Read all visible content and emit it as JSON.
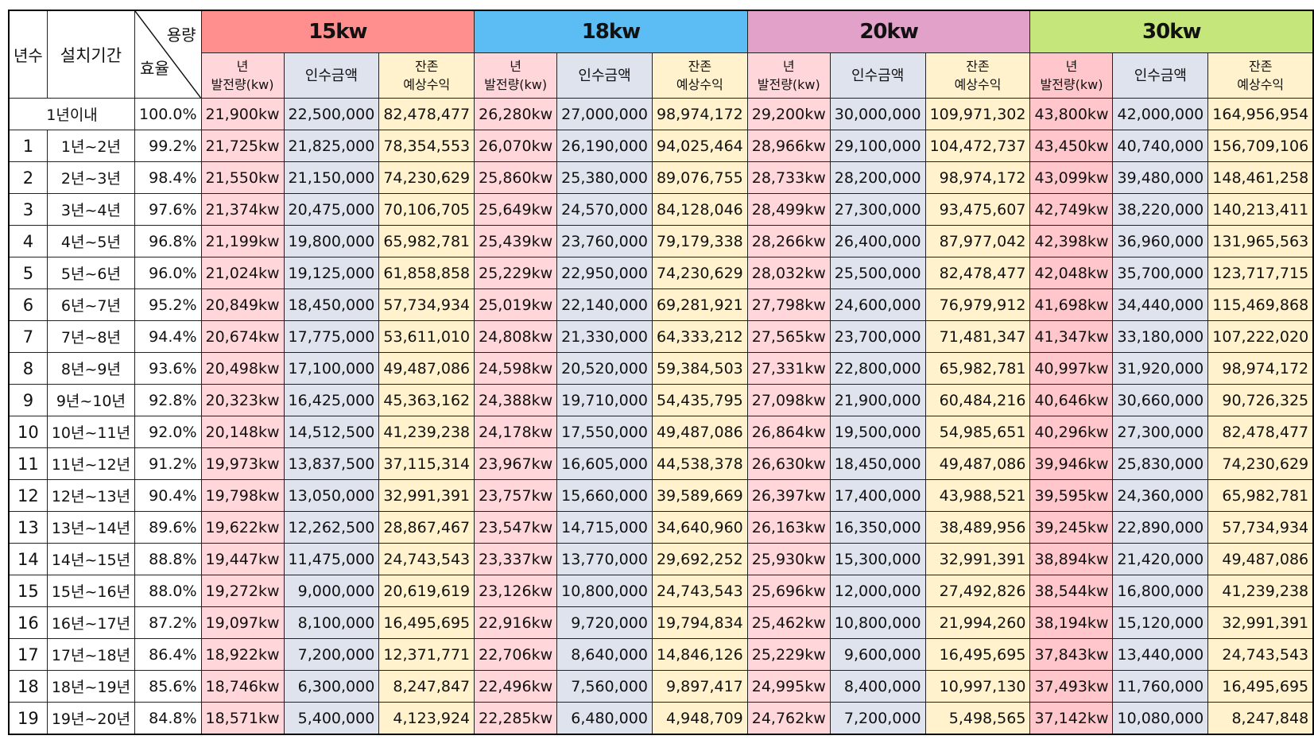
{
  "header": {
    "years": "년수",
    "period": "설치기간",
    "capacity": "용량",
    "efficiency": "효율",
    "groups": [
      {
        "label": "15kw",
        "color": "#FF8F8F"
      },
      {
        "label": "18kw",
        "color": "#5CBDF5"
      },
      {
        "label": "20kw",
        "color": "#E2A1C9"
      },
      {
        "label": "30kw",
        "color": "#C5E67B"
      }
    ],
    "sub": {
      "kw_l1": "년",
      "kw_l2": "발전량(kw)",
      "amount": "인수금액",
      "rev_l1": "잔존",
      "rev_l2": "예상수익"
    }
  },
  "first_row": {
    "period": "1년이내",
    "eff": "100.0%",
    "values": [
      "21,900kw",
      "22,500,000",
      "82,478,477",
      "26,280kw",
      "27,000,000",
      "98,974,172",
      "29,200kw",
      "30,000,000",
      "109,971,302",
      "43,800kw",
      "42,000,000",
      "164,956,954"
    ]
  },
  "rows": [
    {
      "n": "1",
      "period": "1년~2년",
      "eff": "99.2%",
      "values": [
        "21,725kw",
        "21,825,000",
        "78,354,553",
        "26,070kw",
        "26,190,000",
        "94,025,464",
        "28,966kw",
        "29,100,000",
        "104,472,737",
        "43,450kw",
        "40,740,000",
        "156,709,106"
      ]
    },
    {
      "n": "2",
      "period": "2년~3년",
      "eff": "98.4%",
      "values": [
        "21,550kw",
        "21,150,000",
        "74,230,629",
        "25,860kw",
        "25,380,000",
        "89,076,755",
        "28,733kw",
        "28,200,000",
        "98,974,172",
        "43,099kw",
        "39,480,000",
        "148,461,258"
      ]
    },
    {
      "n": "3",
      "period": "3년~4년",
      "eff": "97.6%",
      "values": [
        "21,374kw",
        "20,475,000",
        "70,106,705",
        "25,649kw",
        "24,570,000",
        "84,128,046",
        "28,499kw",
        "27,300,000",
        "93,475,607",
        "42,749kw",
        "38,220,000",
        "140,213,411"
      ]
    },
    {
      "n": "4",
      "period": "4년~5년",
      "eff": "96.8%",
      "values": [
        "21,199kw",
        "19,800,000",
        "65,982,781",
        "25,439kw",
        "23,760,000",
        "79,179,338",
        "28,266kw",
        "26,400,000",
        "87,977,042",
        "42,398kw",
        "36,960,000",
        "131,965,563"
      ]
    },
    {
      "n": "5",
      "period": "5년~6년",
      "eff": "96.0%",
      "values": [
        "21,024kw",
        "19,125,000",
        "61,858,858",
        "25,229kw",
        "22,950,000",
        "74,230,629",
        "28,032kw",
        "25,500,000",
        "82,478,477",
        "42,048kw",
        "35,700,000",
        "123,717,715"
      ]
    },
    {
      "n": "6",
      "period": "6년~7년",
      "eff": "95.2%",
      "values": [
        "20,849kw",
        "18,450,000",
        "57,734,934",
        "25,019kw",
        "22,140,000",
        "69,281,921",
        "27,798kw",
        "24,600,000",
        "76,979,912",
        "41,698kw",
        "34,440,000",
        "115,469,868"
      ]
    },
    {
      "n": "7",
      "period": "7년~8년",
      "eff": "94.4%",
      "values": [
        "20,674kw",
        "17,775,000",
        "53,611,010",
        "24,808kw",
        "21,330,000",
        "64,333,212",
        "27,565kw",
        "23,700,000",
        "71,481,347",
        "41,347kw",
        "33,180,000",
        "107,222,020"
      ]
    },
    {
      "n": "8",
      "period": "8년~9년",
      "eff": "93.6%",
      "values": [
        "20,498kw",
        "17,100,000",
        "49,487,086",
        "24,598kw",
        "20,520,000",
        "59,384,503",
        "27,331kw",
        "22,800,000",
        "65,982,781",
        "40,997kw",
        "31,920,000",
        "98,974,172"
      ]
    },
    {
      "n": "9",
      "period": "9년~10년",
      "eff": "92.8%",
      "values": [
        "20,323kw",
        "16,425,000",
        "45,363,162",
        "24,388kw",
        "19,710,000",
        "54,435,795",
        "27,098kw",
        "21,900,000",
        "60,484,216",
        "40,646kw",
        "30,660,000",
        "90,726,325"
      ]
    },
    {
      "n": "10",
      "period": "10년~11년",
      "eff": "92.0%",
      "values": [
        "20,148kw",
        "14,512,500",
        "41,239,238",
        "24,178kw",
        "17,550,000",
        "49,487,086",
        "26,864kw",
        "19,500,000",
        "54,985,651",
        "40,296kw",
        "27,300,000",
        "82,478,477"
      ]
    },
    {
      "n": "11",
      "period": "11년~12년",
      "eff": "91.2%",
      "values": [
        "19,973kw",
        "13,837,500",
        "37,115,314",
        "23,967kw",
        "16,605,000",
        "44,538,378",
        "26,630kw",
        "18,450,000",
        "49,487,086",
        "39,946kw",
        "25,830,000",
        "74,230,629"
      ]
    },
    {
      "n": "12",
      "period": "12년~13년",
      "eff": "90.4%",
      "values": [
        "19,798kw",
        "13,050,000",
        "32,991,391",
        "23,757kw",
        "15,660,000",
        "39,589,669",
        "26,397kw",
        "17,400,000",
        "43,988,521",
        "39,595kw",
        "24,360,000",
        "65,982,781"
      ]
    },
    {
      "n": "13",
      "period": "13년~14년",
      "eff": "89.6%",
      "values": [
        "19,622kw",
        "12,262,500",
        "28,867,467",
        "23,547kw",
        "14,715,000",
        "34,640,960",
        "26,163kw",
        "16,350,000",
        "38,489,956",
        "39,245kw",
        "22,890,000",
        "57,734,934"
      ]
    },
    {
      "n": "14",
      "period": "14년~15년",
      "eff": "88.8%",
      "values": [
        "19,447kw",
        "11,475,000",
        "24,743,543",
        "23,337kw",
        "13,770,000",
        "29,692,252",
        "25,930kw",
        "15,300,000",
        "32,991,391",
        "38,894kw",
        "21,420,000",
        "49,487,086"
      ]
    },
    {
      "n": "15",
      "period": "15년~16년",
      "eff": "88.0%",
      "values": [
        "19,272kw",
        "9,000,000",
        "20,619,619",
        "23,126kw",
        "10,800,000",
        "24,743,543",
        "25,696kw",
        "12,000,000",
        "27,492,826",
        "38,544kw",
        "16,800,000",
        "41,239,238"
      ]
    },
    {
      "n": "16",
      "period": "16년~17년",
      "eff": "87.2%",
      "values": [
        "19,097kw",
        "8,100,000",
        "16,495,695",
        "22,916kw",
        "9,720,000",
        "19,794,834",
        "25,462kw",
        "10,800,000",
        "21,994,260",
        "38,194kw",
        "15,120,000",
        "32,991,391"
      ]
    },
    {
      "n": "17",
      "period": "17년~18년",
      "eff": "86.4%",
      "values": [
        "18,922kw",
        "7,200,000",
        "12,371,771",
        "22,706kw",
        "8,640,000",
        "14,846,126",
        "25,229kw",
        "9,600,000",
        "16,495,695",
        "37,843kw",
        "13,440,000",
        "24,743,543"
      ]
    },
    {
      "n": "18",
      "period": "18년~19년",
      "eff": "85.6%",
      "values": [
        "18,746kw",
        "6,300,000",
        "8,247,847",
        "22,496kw",
        "7,560,000",
        "9,897,417",
        "24,995kw",
        "8,400,000",
        "10,997,130",
        "37,493kw",
        "11,760,000",
        "16,495,695"
      ]
    },
    {
      "n": "19",
      "period": "19년~20년",
      "eff": "84.8%",
      "values": [
        "18,571kw",
        "5,400,000",
        "4,123,924",
        "22,285kw",
        "6,480,000",
        "4,948,709",
        "24,762kw",
        "7,200,000",
        "5,498,565",
        "37,142kw",
        "10,080,000",
        "8,247,848"
      ]
    }
  ]
}
